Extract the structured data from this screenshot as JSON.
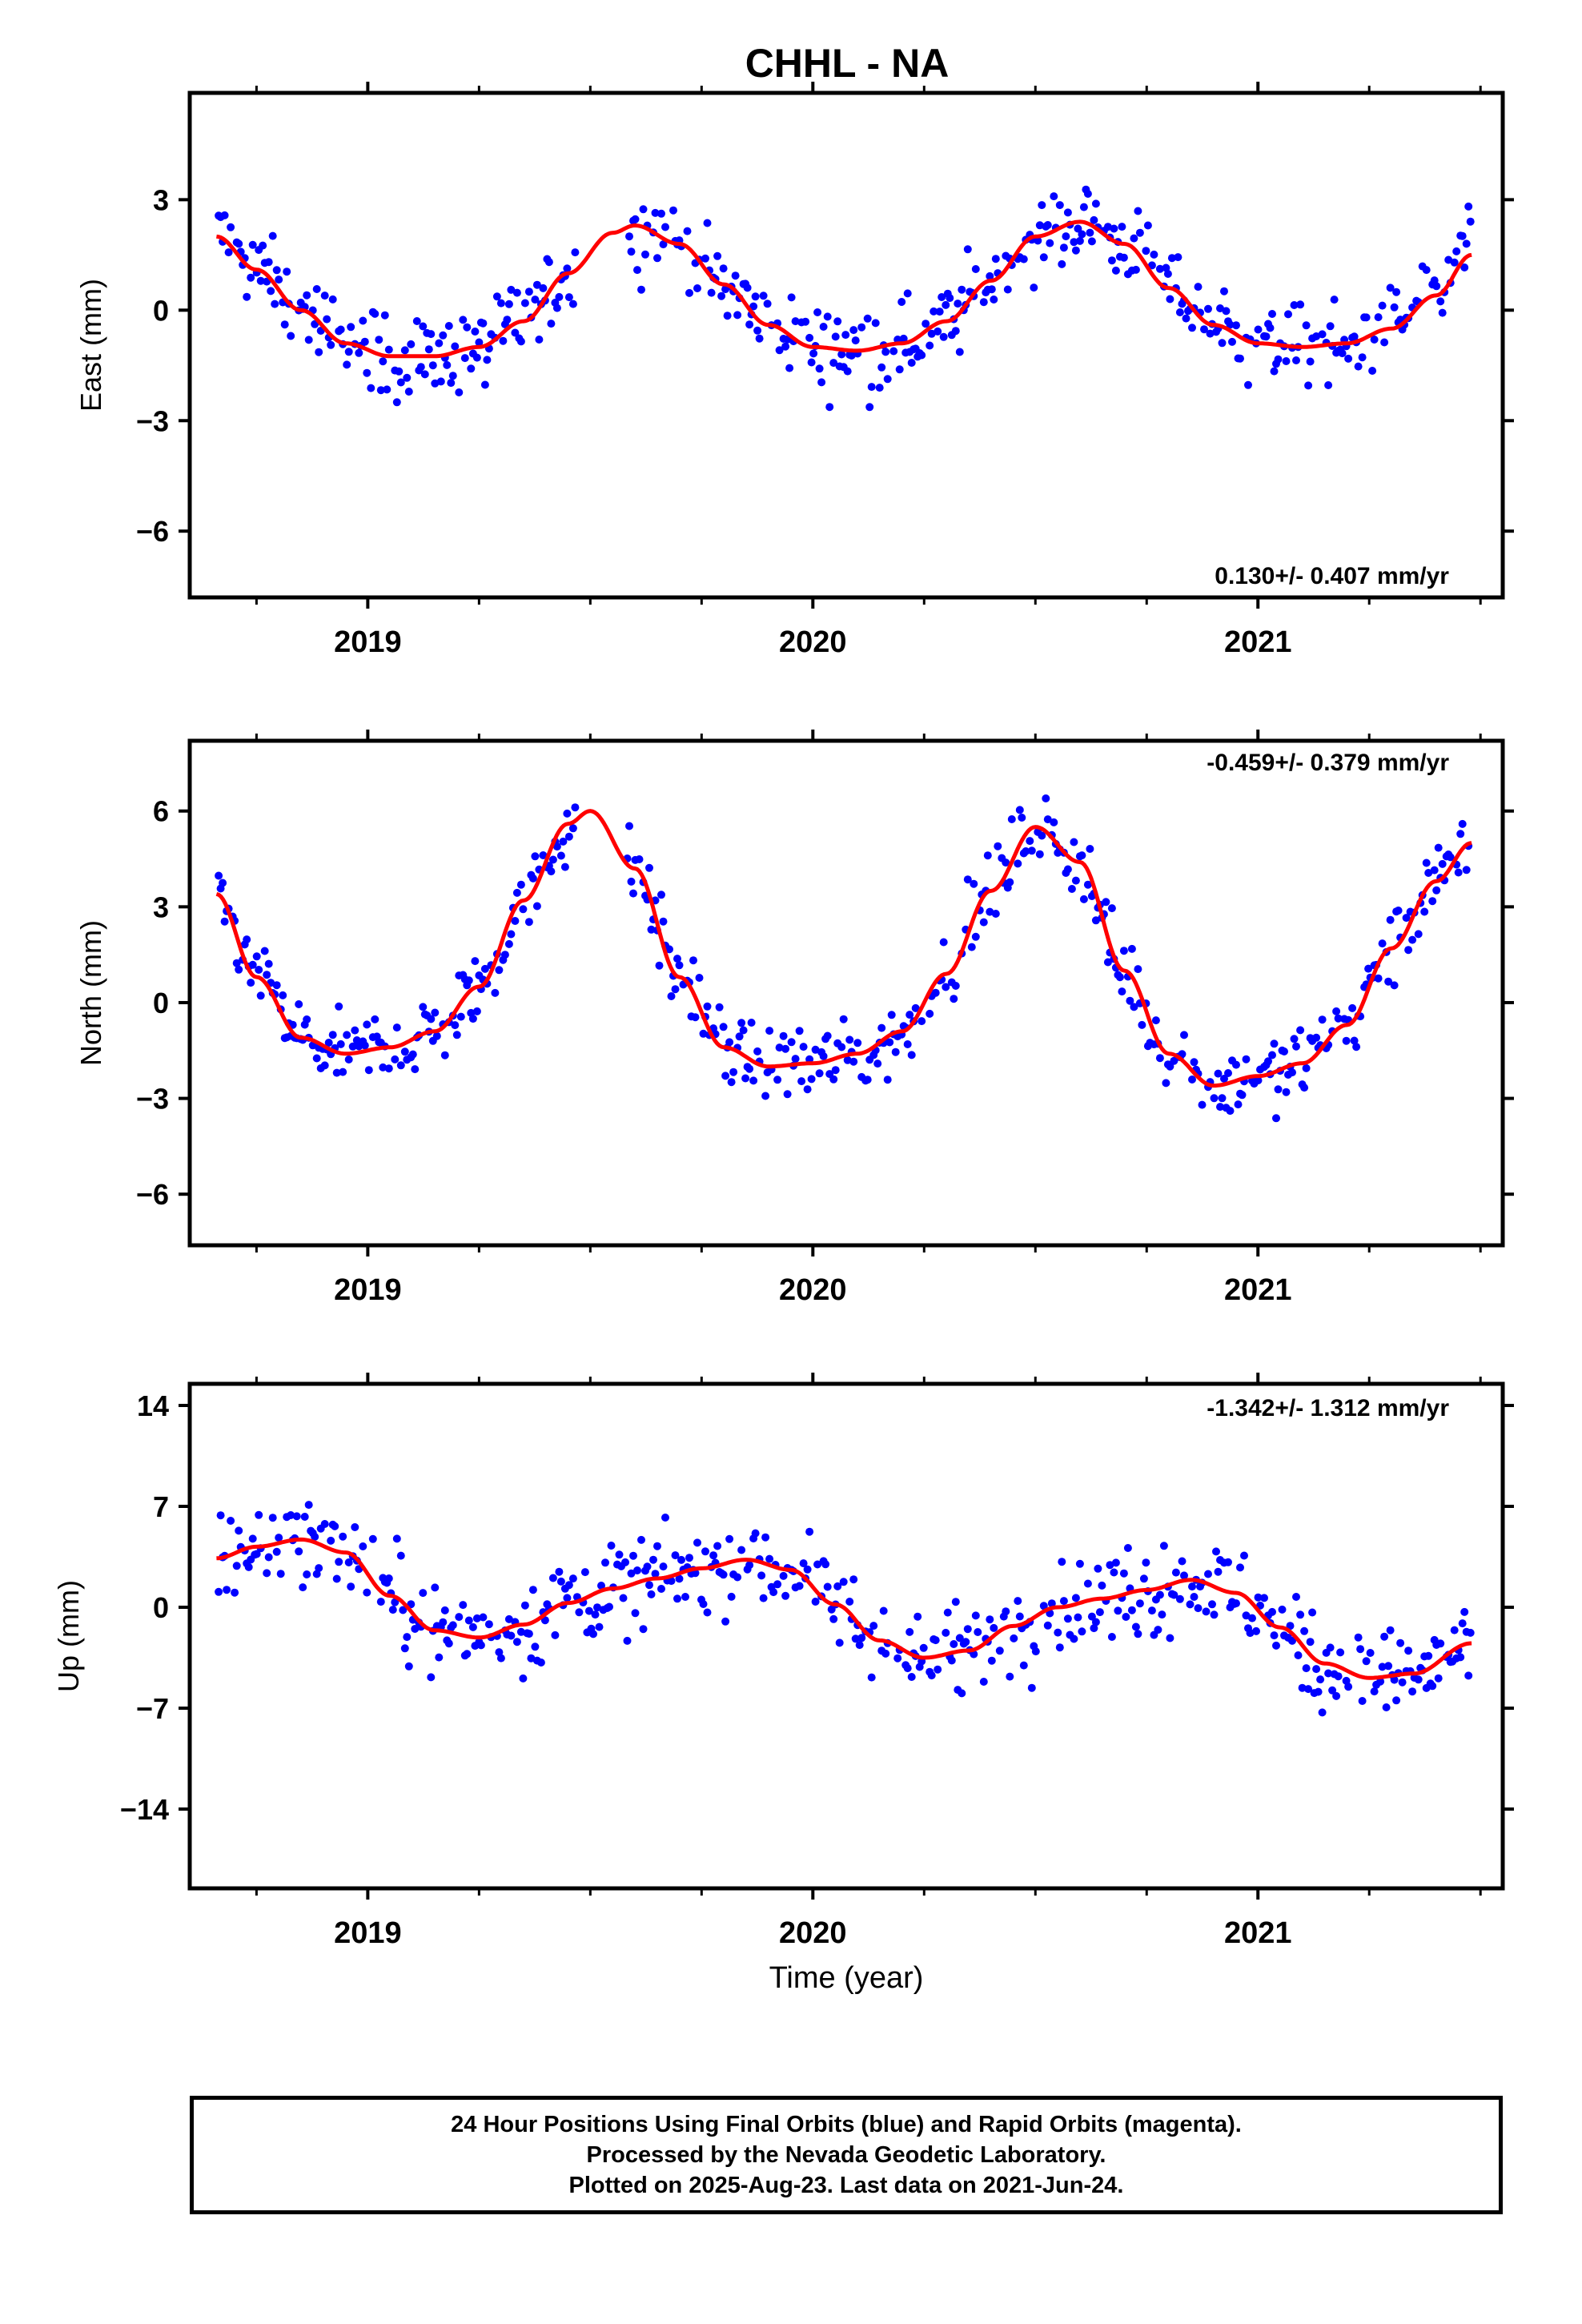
{
  "title": "CHHL - NA",
  "colors": {
    "data_points": "#0000ff",
    "model_line": "#ff0000"
  },
  "footer": {
    "line1": "24 Hour Positions Using Final Orbits (blue) and Rapid Orbits (magenta).",
    "line2": "Processed by the Nevada Geodetic Laboratory.",
    "line3": "Plotted on 2025-Aug-23. Last data on 2021-Jun-24."
  },
  "chart_data": [
    {
      "type": "scatter",
      "component": "east",
      "ylabel": "East (mm)",
      "xlabel": "",
      "rate_text": "0.130+/- 0.407 mm/yr",
      "xlim": [
        2018.6,
        2021.55
      ],
      "ylim": [
        -7.8,
        5.9
      ],
      "yticks": [
        -6,
        -3,
        0,
        3
      ],
      "xticks": [
        2019,
        2020,
        2021
      ],
      "grid": false,
      "model": {
        "x": [
          2018.66,
          2018.75,
          2018.85,
          2018.95,
          2019.05,
          2019.15,
          2019.25,
          2019.35,
          2019.45,
          2019.55,
          2019.6,
          2019.7,
          2019.8,
          2019.9,
          2020.0,
          2020.1,
          2020.2,
          2020.3,
          2020.4,
          2020.5,
          2020.6,
          2020.7,
          2020.8,
          2020.9,
          2021.0,
          2021.1,
          2021.2,
          2021.3,
          2021.4,
          2021.48
        ],
        "y": [
          2.0,
          1.1,
          0.0,
          -0.9,
          -1.25,
          -1.25,
          -1.0,
          -0.3,
          1.0,
          2.1,
          2.3,
          1.8,
          0.7,
          -0.4,
          -1.0,
          -1.1,
          -0.9,
          -0.3,
          0.8,
          2.0,
          2.4,
          1.8,
          0.6,
          -0.4,
          -0.9,
          -1.0,
          -0.9,
          -0.5,
          0.4,
          1.5
        ]
      }
    },
    {
      "type": "scatter",
      "component": "north",
      "ylabel": "North (mm)",
      "xlabel": "",
      "rate_text": "-0.459+/- 0.379 mm/yr",
      "xlim": [
        2018.6,
        2021.55
      ],
      "ylim": [
        -7.6,
        8.2
      ],
      "yticks": [
        -6,
        -3,
        0,
        3,
        6
      ],
      "xticks": [
        2019,
        2020,
        2021
      ],
      "grid": false,
      "model": {
        "x": [
          2018.66,
          2018.75,
          2018.85,
          2018.95,
          2019.05,
          2019.15,
          2019.25,
          2019.35,
          2019.45,
          2019.5,
          2019.6,
          2019.7,
          2019.8,
          2019.9,
          2020.0,
          2020.1,
          2020.2,
          2020.3,
          2020.4,
          2020.5,
          2020.6,
          2020.7,
          2020.8,
          2020.9,
          2021.0,
          2021.1,
          2021.2,
          2021.3,
          2021.4,
          2021.48
        ],
        "y": [
          3.4,
          0.8,
          -1.1,
          -1.6,
          -1.4,
          -0.9,
          0.5,
          3.2,
          5.6,
          6.0,
          4.2,
          0.8,
          -1.4,
          -2.0,
          -1.9,
          -1.6,
          -0.9,
          0.9,
          3.5,
          5.5,
          4.4,
          1.0,
          -1.6,
          -2.6,
          -2.3,
          -1.9,
          -0.7,
          1.7,
          3.8,
          5.0
        ]
      }
    },
    {
      "type": "scatter",
      "component": "up",
      "ylabel": "Up (mm)",
      "xlabel": "Time (year)",
      "rate_text": "-1.342+/- 1.312 mm/yr",
      "xlim": [
        2018.6,
        2021.55
      ],
      "ylim": [
        -19.5,
        15.5
      ],
      "yticks": [
        -14,
        -7,
        0,
        7,
        14
      ],
      "xticks": [
        2019,
        2020,
        2021
      ],
      "grid": false,
      "model": {
        "x": [
          2018.66,
          2018.75,
          2018.85,
          2018.95,
          2019.05,
          2019.15,
          2019.25,
          2019.35,
          2019.45,
          2019.55,
          2019.65,
          2019.75,
          2019.85,
          2019.95,
          2020.05,
          2020.15,
          2020.25,
          2020.35,
          2020.45,
          2020.55,
          2020.65,
          2020.75,
          2020.85,
          2020.95,
          2021.05,
          2021.15,
          2021.25,
          2021.35,
          2021.48
        ],
        "y": [
          3.4,
          4.2,
          4.7,
          3.8,
          0.8,
          -1.6,
          -2.1,
          -1.2,
          0.3,
          1.3,
          2.0,
          2.7,
          3.3,
          2.6,
          0.2,
          -2.3,
          -3.5,
          -3.0,
          -1.3,
          0.0,
          0.6,
          1.2,
          1.9,
          1.0,
          -1.4,
          -3.9,
          -4.9,
          -4.6,
          -2.5
        ]
      }
    }
  ]
}
